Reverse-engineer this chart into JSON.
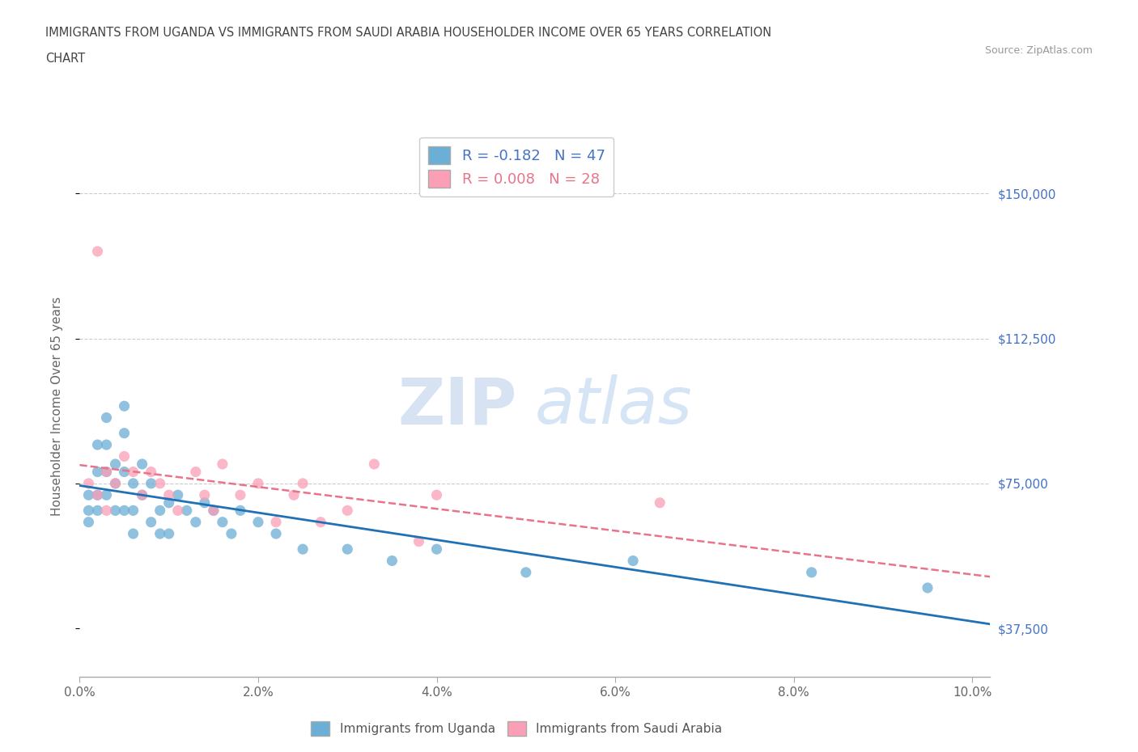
{
  "title_line1": "IMMIGRANTS FROM UGANDA VS IMMIGRANTS FROM SAUDI ARABIA HOUSEHOLDER INCOME OVER 65 YEARS CORRELATION",
  "title_line2": "CHART",
  "source_text": "Source: ZipAtlas.com",
  "ylabel": "Householder Income Over 65 years",
  "xlim": [
    0.0,
    0.102
  ],
  "ylim": [
    25000,
    165000
  ],
  "xticks": [
    0.0,
    0.02,
    0.04,
    0.06,
    0.08,
    0.1
  ],
  "xticklabels": [
    "0.0%",
    "2.0%",
    "4.0%",
    "6.0%",
    "8.0%",
    "10.0%"
  ],
  "yticks": [
    37500,
    75000,
    112500,
    150000
  ],
  "yticklabels": [
    "$37,500",
    "$75,000",
    "$112,500",
    "$150,000"
  ],
  "hlines": [
    75000,
    112500,
    150000
  ],
  "uganda_color": "#6baed6",
  "saudi_color": "#fa9fb5",
  "uganda_line_color": "#2171b5",
  "saudi_line_color": "#e8748a",
  "uganda_R": -0.182,
  "uganda_N": 47,
  "saudi_R": 0.008,
  "saudi_N": 28,
  "legend_R_label1": "R = -0.182   N = 47",
  "legend_R_label2": "R = 0.008   N = 28",
  "legend_label1": "Immigrants from Uganda",
  "legend_label2": "Immigrants from Saudi Arabia",
  "watermark_ZIP": "ZIP",
  "watermark_atlas": "atlas",
  "uganda_x": [
    0.001,
    0.001,
    0.001,
    0.002,
    0.002,
    0.002,
    0.002,
    0.003,
    0.003,
    0.003,
    0.003,
    0.004,
    0.004,
    0.004,
    0.005,
    0.005,
    0.005,
    0.005,
    0.006,
    0.006,
    0.006,
    0.007,
    0.007,
    0.008,
    0.008,
    0.009,
    0.009,
    0.01,
    0.01,
    0.011,
    0.012,
    0.013,
    0.014,
    0.015,
    0.016,
    0.017,
    0.018,
    0.02,
    0.022,
    0.025,
    0.03,
    0.035,
    0.04,
    0.05,
    0.062,
    0.082,
    0.095
  ],
  "uganda_y": [
    72000,
    68000,
    65000,
    85000,
    78000,
    72000,
    68000,
    92000,
    85000,
    78000,
    72000,
    80000,
    75000,
    68000,
    95000,
    88000,
    78000,
    68000,
    75000,
    68000,
    62000,
    80000,
    72000,
    75000,
    65000,
    68000,
    62000,
    70000,
    62000,
    72000,
    68000,
    65000,
    70000,
    68000,
    65000,
    62000,
    68000,
    65000,
    62000,
    58000,
    58000,
    55000,
    58000,
    52000,
    55000,
    52000,
    48000
  ],
  "saudi_x": [
    0.001,
    0.002,
    0.002,
    0.003,
    0.003,
    0.004,
    0.005,
    0.006,
    0.007,
    0.008,
    0.009,
    0.01,
    0.011,
    0.013,
    0.014,
    0.015,
    0.016,
    0.018,
    0.02,
    0.022,
    0.024,
    0.025,
    0.027,
    0.03,
    0.033,
    0.038,
    0.04,
    0.065
  ],
  "saudi_y": [
    75000,
    135000,
    72000,
    78000,
    68000,
    75000,
    82000,
    78000,
    72000,
    78000,
    75000,
    72000,
    68000,
    78000,
    72000,
    68000,
    80000,
    72000,
    75000,
    65000,
    72000,
    75000,
    65000,
    68000,
    80000,
    60000,
    72000,
    70000
  ]
}
